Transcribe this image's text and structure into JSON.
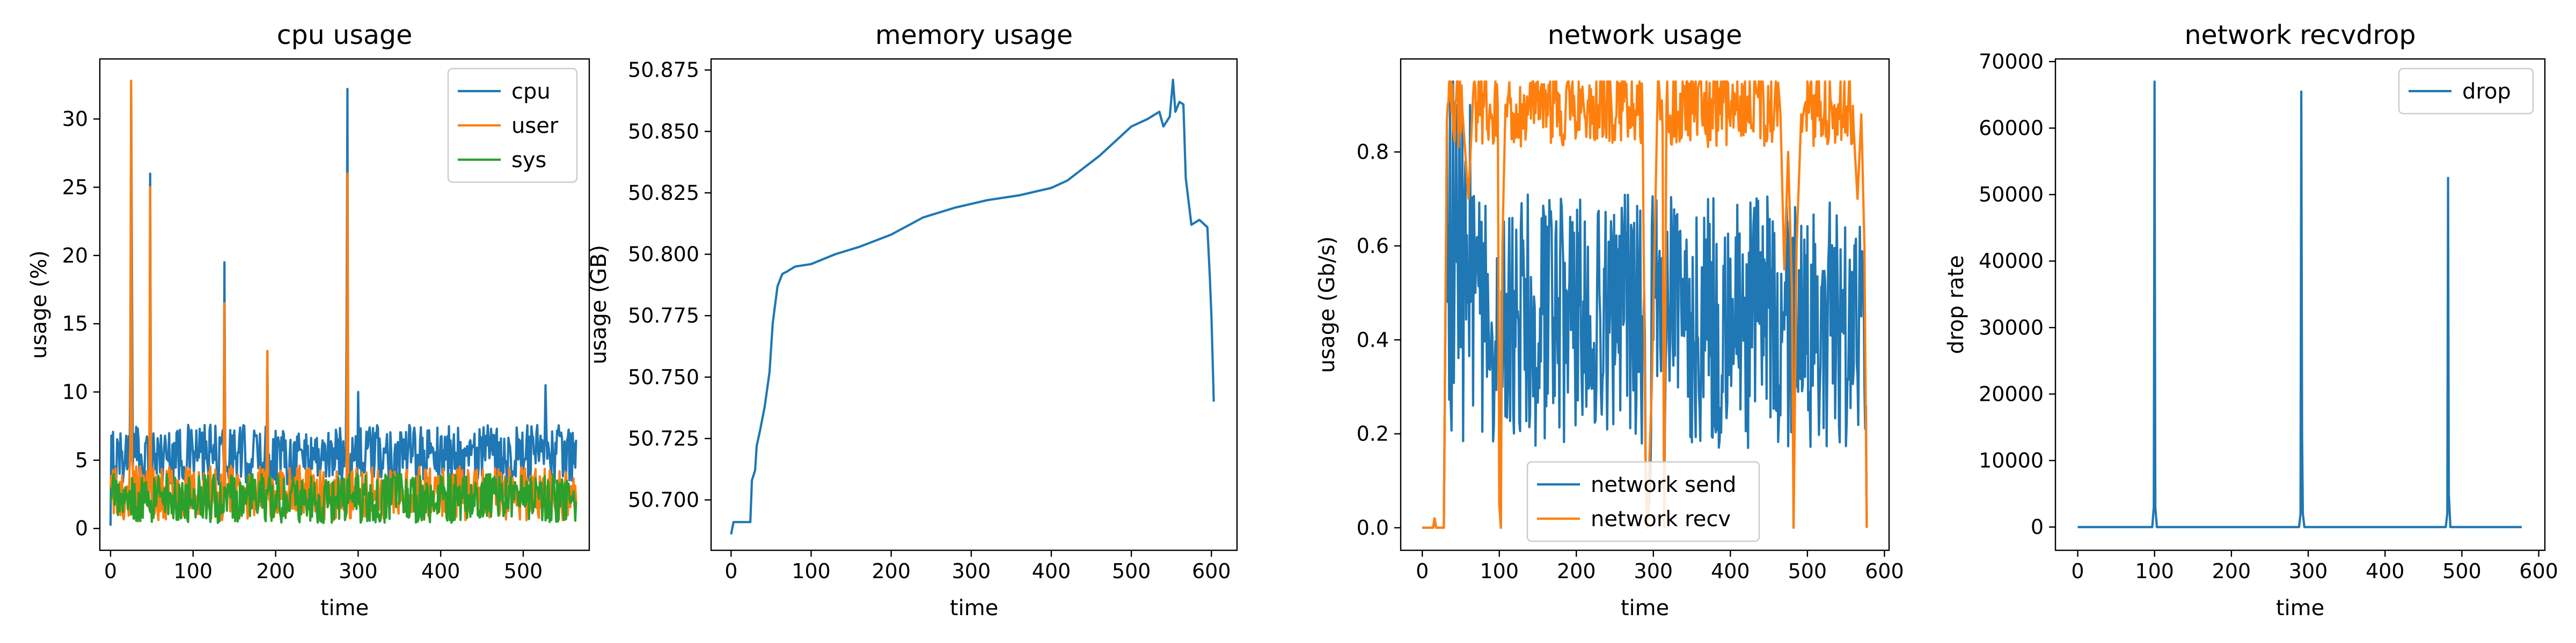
{
  "colors": {
    "blue": "#1f77b4",
    "orange": "#ff7f0e",
    "green": "#2ca02c"
  },
  "chart_data": [
    {
      "type": "line",
      "title": "cpu usage",
      "xlabel": "time",
      "ylabel": "usage (%)",
      "xlim": [
        -13,
        580
      ],
      "ylim": [
        -1.6,
        34.4
      ],
      "xticks": [
        0,
        100,
        200,
        300,
        400,
        500
      ],
      "yticks": [
        0,
        5,
        10,
        15,
        20,
        25,
        30
      ],
      "legend": "top-right",
      "grid": false,
      "series": [
        {
          "name": "cpu",
          "color": "#1f77b4",
          "kind": "noisy",
          "n": 565,
          "base": 5.4,
          "noise": 2.2,
          "clamp": [
            0,
            11
          ],
          "points": [
            [
              0,
              0.2
            ],
            [
              1,
              6.8
            ],
            [
              2,
              3.2
            ],
            [
              5,
              4.5
            ],
            [
              24,
              12
            ],
            [
              25,
              32.8
            ],
            [
              26,
              18
            ],
            [
              27,
              4.5
            ],
            [
              47,
              5
            ],
            [
              48,
              26
            ],
            [
              49,
              6
            ],
            [
              137,
              5
            ],
            [
              138,
              19.5
            ],
            [
              139,
              5
            ],
            [
              189,
              5
            ],
            [
              190,
              13
            ],
            [
              191,
              5
            ],
            [
              285,
              5
            ],
            [
              286,
              14.5
            ],
            [
              287,
              32.2
            ],
            [
              288,
              5
            ],
            [
              300,
              10
            ],
            [
              527,
              10.5
            ],
            [
              560,
              7
            ],
            [
              564,
              6.5
            ]
          ]
        },
        {
          "name": "user",
          "color": "#ff7f0e",
          "kind": "noisy",
          "n": 565,
          "base": 2.6,
          "noise": 2.0,
          "clamp": [
            0.3,
            7.5
          ],
          "points": [
            [
              0,
              3
            ],
            [
              24,
              6
            ],
            [
              25,
              32.8
            ],
            [
              26,
              5
            ],
            [
              47,
              4
            ],
            [
              48,
              25
            ],
            [
              49,
              3
            ],
            [
              137,
              3
            ],
            [
              138,
              16.5
            ],
            [
              139,
              3
            ],
            [
              189,
              3
            ],
            [
              190,
              13
            ],
            [
              191,
              3
            ],
            [
              286,
              3
            ],
            [
              287,
              26
            ],
            [
              288,
              3
            ],
            [
              564,
              2
            ]
          ]
        },
        {
          "name": "sys",
          "color": "#2ca02c",
          "kind": "noisy",
          "n": 565,
          "base": 2.2,
          "noise": 1.8,
          "clamp": [
            0.3,
            6.2
          ],
          "points": [
            [
              0,
              2
            ],
            [
              564,
              2
            ]
          ]
        }
      ]
    },
    {
      "type": "line",
      "title": "memory usage",
      "xlabel": "time",
      "ylabel": "usage (GB)",
      "xlim": [
        -25,
        632
      ],
      "ylim": [
        50.6795,
        50.8795
      ],
      "xticks": [
        0,
        100,
        200,
        300,
        400,
        500,
        600
      ],
      "yticks": [
        50.7,
        50.725,
        50.75,
        50.775,
        50.8,
        50.825,
        50.85,
        50.875
      ],
      "ytick_labels": [
        "50.700",
        "50.725",
        "50.750",
        "50.775",
        "50.800",
        "50.825",
        "50.850",
        "50.875"
      ],
      "grid": false,
      "series": [
        {
          "name": "memory",
          "color": "#1f77b4",
          "kind": "path",
          "points": [
            [
              0,
              50.686
            ],
            [
              3,
              50.691
            ],
            [
              24,
              50.691
            ],
            [
              26,
              50.708
            ],
            [
              30,
              50.712
            ],
            [
              32,
              50.722
            ],
            [
              36,
              50.728
            ],
            [
              42,
              50.738
            ],
            [
              48,
              50.752
            ],
            [
              52,
              50.772
            ],
            [
              58,
              50.787
            ],
            [
              64,
              50.792
            ],
            [
              70,
              50.793
            ],
            [
              80,
              50.795
            ],
            [
              100,
              50.796
            ],
            [
              130,
              50.8
            ],
            [
              160,
              50.803
            ],
            [
              200,
              50.808
            ],
            [
              240,
              50.815
            ],
            [
              280,
              50.819
            ],
            [
              320,
              50.822
            ],
            [
              360,
              50.824
            ],
            [
              400,
              50.827
            ],
            [
              420,
              50.83
            ],
            [
              440,
              50.835
            ],
            [
              460,
              50.84
            ],
            [
              480,
              50.846
            ],
            [
              500,
              50.852
            ],
            [
              520,
              50.855
            ],
            [
              535,
              50.858
            ],
            [
              540,
              50.852
            ],
            [
              548,
              50.856
            ],
            [
              552,
              50.871
            ],
            [
              555,
              50.858
            ],
            [
              560,
              50.862
            ],
            [
              565,
              50.861
            ],
            [
              568,
              50.831
            ],
            [
              575,
              50.812
            ],
            [
              585,
              50.814
            ],
            [
              595,
              50.811
            ],
            [
              598,
              50.791
            ],
            [
              600,
              50.775
            ],
            [
              603,
              50.74
            ]
          ]
        }
      ]
    },
    {
      "type": "line",
      "title": "network usage",
      "xlabel": "time",
      "ylabel": "usage (Gb/s)",
      "xlim": [
        -28,
        606
      ],
      "ylim": [
        -0.048,
        0.998
      ],
      "xticks": [
        0,
        100,
        200,
        300,
        400,
        500,
        600
      ],
      "yticks": [
        0.0,
        0.2,
        0.4,
        0.6,
        0.8
      ],
      "ytick_labels": [
        "0.0",
        "0.2",
        "0.4",
        "0.6",
        "0.8"
      ],
      "legend": "bottom-center",
      "grid": false,
      "series": [
        {
          "name": "network send",
          "color": "#1f77b4",
          "kind": "noisy",
          "n": 578,
          "base": 0.44,
          "noise": 0.27,
          "clamp": [
            0.15,
            0.72
          ],
          "points": [
            [
              0,
              0.0
            ],
            [
              14,
              0.0
            ],
            [
              16,
              0.02
            ],
            [
              18,
              0.0
            ],
            [
              28,
              0.0
            ],
            [
              32,
              0.85
            ],
            [
              36,
              0.93
            ],
            [
              40,
              0.95
            ],
            [
              44,
              0.9
            ],
            [
              48,
              0.92
            ],
            [
              52,
              0.88
            ],
            [
              56,
              0.78
            ],
            [
              60,
              0.55
            ],
            [
              62,
              0.9
            ],
            [
              64,
              0.5
            ],
            [
              98,
              0.45
            ],
            [
              100,
              0.05
            ],
            [
              102,
              0.0
            ],
            [
              104,
              0.3
            ],
            [
              107,
              0.45
            ],
            [
              286,
              0.45
            ],
            [
              290,
              0.12
            ],
            [
              292,
              0.0
            ],
            [
              296,
              0.1
            ],
            [
              300,
              0.4
            ],
            [
              312,
              0.4
            ],
            [
              314,
              0.0
            ],
            [
              317,
              0.4
            ],
            [
              480,
              0.4
            ],
            [
              482,
              0.0
            ],
            [
              486,
              0.3
            ],
            [
              490,
              0.45
            ],
            [
              570,
              0.45
            ],
            [
              574,
              0.3
            ],
            [
              577,
              0.0
            ]
          ]
        },
        {
          "name": "network recv",
          "color": "#ff7f0e",
          "kind": "noisy",
          "n": 578,
          "base": 0.89,
          "noise": 0.08,
          "clamp": [
            0.66,
            0.95
          ],
          "points": [
            [
              0,
              0.0
            ],
            [
              14,
              0.0
            ],
            [
              16,
              0.02
            ],
            [
              18,
              0.0
            ],
            [
              28,
              0.0
            ],
            [
              32,
              0.87
            ],
            [
              36,
              0.91
            ],
            [
              52,
              0.89
            ],
            [
              60,
              0.7
            ],
            [
              66,
              0.92
            ],
            [
              98,
              0.9
            ],
            [
              100,
              0.05
            ],
            [
              102,
              0.0
            ],
            [
              104,
              0.6
            ],
            [
              108,
              0.9
            ],
            [
              286,
              0.88
            ],
            [
              290,
              0.1
            ],
            [
              292,
              0.0
            ],
            [
              298,
              0.3
            ],
            [
              305,
              0.88
            ],
            [
              312,
              0.85
            ],
            [
              314,
              0.0
            ],
            [
              317,
              0.9
            ],
            [
              465,
              0.88
            ],
            [
              470,
              0.55
            ],
            [
              475,
              0.8
            ],
            [
              480,
              0.5
            ],
            [
              482,
              0.0
            ],
            [
              486,
              0.6
            ],
            [
              492,
              0.88
            ],
            [
              560,
              0.85
            ],
            [
              565,
              0.7
            ],
            [
              570,
              0.88
            ],
            [
              574,
              0.6
            ],
            [
              577,
              0.0
            ]
          ]
        }
      ]
    },
    {
      "type": "line",
      "title": "network recvdrop",
      "xlabel": "time",
      "ylabel": "drop rate",
      "xlim": [
        -29,
        608
      ],
      "ylim": [
        -3500,
        70400
      ],
      "xticks": [
        0,
        100,
        200,
        300,
        400,
        500,
        600
      ],
      "yticks": [
        0,
        10000,
        20000,
        30000,
        40000,
        50000,
        60000,
        70000
      ],
      "legend": "top-right",
      "grid": false,
      "series": [
        {
          "name": "drop",
          "color": "#1f77b4",
          "kind": "path",
          "points": [
            [
              0,
              0
            ],
            [
              97,
              0
            ],
            [
              99,
              3000
            ],
            [
              100,
              67000
            ],
            [
              101,
              3000
            ],
            [
              103,
              0
            ],
            [
              288,
              0
            ],
            [
              290,
              2000
            ],
            [
              291,
              65500
            ],
            [
              292,
              14000
            ],
            [
              293,
              2000
            ],
            [
              295,
              0
            ],
            [
              479,
              0
            ],
            [
              481,
              2000
            ],
            [
              482,
              52500
            ],
            [
              483,
              5000
            ],
            [
              485,
              0
            ],
            [
              578,
              0
            ]
          ]
        }
      ]
    }
  ]
}
